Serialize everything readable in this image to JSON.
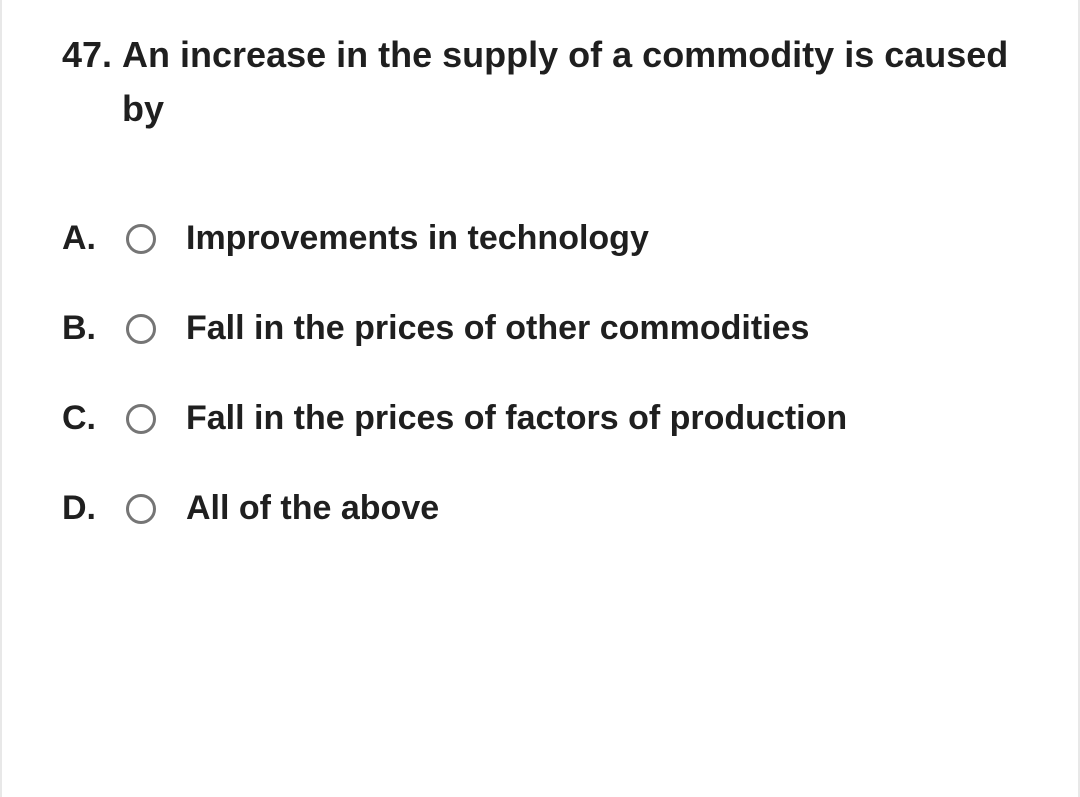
{
  "question": {
    "number": "47.",
    "text": "An increase in the supply of a commodity is caused by"
  },
  "options": [
    {
      "letter": "A.",
      "text": "Improvements in technology"
    },
    {
      "letter": "B.",
      "text": "Fall in the prices of other commodities"
    },
    {
      "letter": "C.",
      "text": "Fall in the prices of factors of production"
    },
    {
      "letter": "D.",
      "text": "All of the above"
    }
  ],
  "styling": {
    "background_color": "#ffffff",
    "border_color": "#e8e8e8",
    "text_color": "#1f1f1f",
    "radio_border_color": "#757575",
    "question_fontsize": 36,
    "option_fontsize": 34,
    "font_weight": 700,
    "radio_size": 30,
    "radio_border_width": 3
  }
}
